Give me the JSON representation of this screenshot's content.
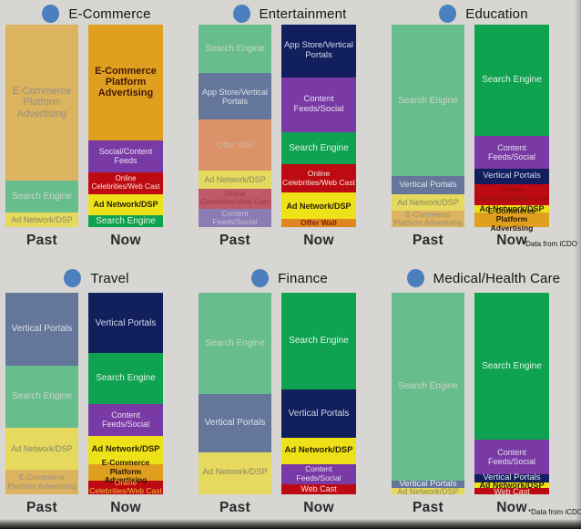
{
  "slide": {
    "background": "#D7D6D3",
    "bullet_color": "#4C7FBE",
    "past_label": "Past",
    "now_label": "Now",
    "footnote": "*Data from iCDO"
  },
  "palette": {
    "past_platform_tan": "#DCB35E",
    "past_search_green": "#68BD8D",
    "past_portals_slate": "#64769A",
    "past_adnetwork_yellow": "#E5D95E",
    "past_offerwall_salmon": "#DB9268",
    "past_celebrities_rose": "#BE5A68",
    "past_feeds_lavender": "#8D7CB4",
    "now_platform_amber": "#DEA01E",
    "now_feeds_purple": "#7A3AA5",
    "now_celebrities_red": "#BE0A12",
    "now_adnetwork_yellow": "#EFE118",
    "now_search_green": "#0FA351",
    "now_portals_navy": "#111F5C",
    "now_offerwall_orange": "#DF861E"
  },
  "chart_note": "Six stacked 100%-style column pairs; no numeric axis shown, pct values estimated from segment pixel heights, listed top-to-bottom",
  "chart_data": [
    {
      "type": "bar",
      "stacked": true,
      "title": "E-Commerce",
      "categories": [
        "Past",
        "Now"
      ],
      "footnote": false,
      "past": [
        {
          "label": "E-Commerce Platform Advertising",
          "pct": 77,
          "bg": "#DCB35E",
          "fg": "#948F80",
          "fs": 11
        },
        {
          "label": "Search Engine",
          "pct": 16,
          "bg": "#68BD8D",
          "fg": "#CBD5C4",
          "fs": 10
        },
        {
          "label": "Ad Network/DSP",
          "pct": 7,
          "bg": "#E5D95E",
          "fg": "#8A8564",
          "fs": 9
        }
      ],
      "now": [
        {
          "label": "E-Commerce Platform Advertising",
          "pct": 57,
          "bg": "#DEA01E",
          "fg": "#47180A",
          "fs": 11,
          "b": true
        },
        {
          "label": "Social/Content Feeds",
          "pct": 16,
          "bg": "#7A3AA5",
          "fg": "#EADEF2",
          "fs": 9
        },
        {
          "label": "Online Celebrities/Web Cast",
          "pct": 11,
          "bg": "#BE0A12",
          "fg": "#F4E9DE",
          "fs": 8
        },
        {
          "label": "Ad Network/DSP",
          "pct": 10,
          "bg": "#EFE118",
          "fg": "#2A2406",
          "fs": 9,
          "b": true
        },
        {
          "label": "Search Engine",
          "pct": 6,
          "bg": "#0FA351",
          "fg": "#DFF2E2",
          "fs": 10
        }
      ]
    },
    {
      "type": "bar",
      "stacked": true,
      "title": "Entertainment",
      "categories": [
        "Past",
        "Now"
      ],
      "footnote": false,
      "past": [
        {
          "label": "Search Engine",
          "pct": 24,
          "bg": "#68BD8D",
          "fg": "#CBD5C4",
          "fs": 10
        },
        {
          "label": "App Store/Vertical Portals",
          "pct": 23,
          "bg": "#64769A",
          "fg": "#DCE1EA",
          "fs": 9
        },
        {
          "label": "Offer Wall",
          "pct": 25,
          "bg": "#DB9268",
          "fg": "#CFB7A0",
          "fs": 9
        },
        {
          "label": "Ad Network/DSP",
          "pct": 9,
          "bg": "#E5D95E",
          "fg": "#8A8564",
          "fs": 9
        },
        {
          "label": "Online Celebrities/Web Cast",
          "pct": 10,
          "bg": "#BE5A68",
          "fg": "#9E3B48",
          "fs": 8
        },
        {
          "label": "Content Feeds/Social",
          "pct": 9,
          "bg": "#8D7CB4",
          "fg": "#C6BEDA",
          "fs": 8.5
        }
      ],
      "now": [
        {
          "label": "App Store/Vertical Portals",
          "pct": 26,
          "bg": "#111F5C",
          "fg": "#D3D9EC",
          "fs": 9.5
        },
        {
          "label": "Content Feeds/Social",
          "pct": 27,
          "bg": "#7A3AA5",
          "fg": "#EADEF2",
          "fs": 9.5
        },
        {
          "label": "Search Engine",
          "pct": 16,
          "bg": "#0FA351",
          "fg": "#DFF2E2",
          "fs": 10
        },
        {
          "label": "Online Celebrities/Web Cast",
          "pct": 14,
          "bg": "#BE0A12",
          "fg": "#F4E9DE",
          "fs": 8.5
        },
        {
          "label": "Ad Network/DSP",
          "pct": 13,
          "bg": "#EFE118",
          "fg": "#2A2406",
          "fs": 9,
          "b": true
        },
        {
          "label": "Offer Wall",
          "pct": 4,
          "bg": "#DF861E",
          "fg": "#7E2410",
          "fs": 8.5,
          "b": true
        }
      ]
    },
    {
      "type": "bar",
      "stacked": true,
      "title": "Education",
      "categories": [
        "Past",
        "Now"
      ],
      "footnote": true,
      "past": [
        {
          "label": "Search Engine",
          "pct": 75,
          "bg": "#68BD8D",
          "fg": "#CBD5C4",
          "fs": 10
        },
        {
          "label": "Vertical Portals",
          "pct": 9,
          "bg": "#64769A",
          "fg": "#DCE1EA",
          "fs": 9.5
        },
        {
          "label": "Ad Network/DSP",
          "pct": 8,
          "bg": "#E5D95E",
          "fg": "#8A8564",
          "fs": 9
        },
        {
          "label": "E-Commerce Platform Advertising",
          "pct": 8,
          "bg": "#DCB35E",
          "fg": "#948F80",
          "fs": 8.5
        }
      ],
      "now": [
        {
          "label": "Search Engine",
          "pct": 55,
          "bg": "#0FA351",
          "fg": "#DFF2E2",
          "fs": 10
        },
        {
          "label": "Content Feeds/Social",
          "pct": 16,
          "bg": "#7A3AA5",
          "fg": "#EADEF2",
          "fs": 9
        },
        {
          "label": "Vertical Portals",
          "pct": 8,
          "bg": "#111F5C",
          "fg": "#D3D9EC",
          "fs": 9.5
        },
        {
          "label": "Online Celebrities/Web Cast",
          "pct": 10,
          "bg": "#BE0A12",
          "fg": "#8A1208",
          "fs": 8.5
        },
        {
          "label": "Ad Network/DSP",
          "pct": 4,
          "bg": "#EFE118",
          "fg": "#2A2406",
          "fs": 9,
          "b": true
        },
        {
          "label": "E-Commerce Platform Advertising",
          "pct": 7,
          "bg": "#DEA01E",
          "fg": "#2A1404",
          "fs": 8.5,
          "b": true
        }
      ]
    },
    {
      "type": "bar",
      "stacked": true,
      "title": "Travel",
      "categories": [
        "Past",
        "Now"
      ],
      "footnote": false,
      "past": [
        {
          "label": "Vertical Portals",
          "pct": 36,
          "bg": "#64769A",
          "fg": "#DCE1EA",
          "fs": 10
        },
        {
          "label": "Search Engine",
          "pct": 31,
          "bg": "#68BD8D",
          "fg": "#CBD5C4",
          "fs": 10
        },
        {
          "label": "Ad Network/DSP",
          "pct": 21,
          "bg": "#E5D95E",
          "fg": "#8A8564",
          "fs": 9
        },
        {
          "label": "E-Commerce Platform Advertising",
          "pct": 12,
          "bg": "#DCB35E",
          "fg": "#948F80",
          "fs": 8.5
        }
      ],
      "now": [
        {
          "label": "Vertical Portals",
          "pct": 30,
          "bg": "#111F5C",
          "fg": "#D3D9EC",
          "fs": 10
        },
        {
          "label": "Search Engine",
          "pct": 25,
          "bg": "#0FA351",
          "fg": "#DFF2E2",
          "fs": 10
        },
        {
          "label": "Content Feeds/Social",
          "pct": 16,
          "bg": "#7A3AA5",
          "fg": "#EADEF2",
          "fs": 9
        },
        {
          "label": "Ad Network/DSP",
          "pct": 14,
          "bg": "#EFE118",
          "fg": "#2A2406",
          "fs": 9.5,
          "b": true
        },
        {
          "label": "E-Commerce Platform Advertising",
          "pct": 8,
          "bg": "#DEA01E",
          "fg": "#2A1404",
          "fs": 8.5,
          "b": true
        },
        {
          "label": "Online Celebrities/Web Cast",
          "pct": 7,
          "bg": "#BE0A12",
          "fg": "#EDC53C",
          "fs": 8.5
        }
      ]
    },
    {
      "type": "bar",
      "stacked": true,
      "title": "Finance",
      "categories": [
        "Past",
        "Now"
      ],
      "footnote": false,
      "past": [
        {
          "label": "Search Engine",
          "pct": 50,
          "bg": "#68BD8D",
          "fg": "#CBD5C4",
          "fs": 10
        },
        {
          "label": "Vertical Portals",
          "pct": 29,
          "bg": "#64769A",
          "fg": "#DCE1EA",
          "fs": 10
        },
        {
          "label": "Ad Network/DSP",
          "pct": 21,
          "bg": "#E5D95E",
          "fg": "#8A8564",
          "fs": 9.5
        }
      ],
      "now": [
        {
          "label": "Search Engine",
          "pct": 48,
          "bg": "#0FA351",
          "fg": "#DFF2E2",
          "fs": 10
        },
        {
          "label": "Vertical Portals",
          "pct": 24,
          "bg": "#111F5C",
          "fg": "#D3D9EC",
          "fs": 10
        },
        {
          "label": "Ad Network/DSP",
          "pct": 13,
          "bg": "#EFE118",
          "fg": "#2A2406",
          "fs": 9.5,
          "b": true
        },
        {
          "label": "Content Feeds/Social",
          "pct": 10,
          "bg": "#7A3AA5",
          "fg": "#EADEF2",
          "fs": 8.5
        },
        {
          "label": "Web Cast",
          "pct": 5,
          "bg": "#BE0A12",
          "fg": "#F4E9DE",
          "fs": 9
        }
      ]
    },
    {
      "type": "bar",
      "stacked": true,
      "title": "Medical/Health Care",
      "categories": [
        "Past",
        "Now"
      ],
      "footnote": true,
      "past": [
        {
          "label": "Search Engine",
          "pct": 93,
          "bg": "#68BD8D",
          "fg": "#CBD5C4",
          "fs": 10
        },
        {
          "label": "Vertical Portals",
          "pct": 4,
          "bg": "#64769A",
          "fg": "#EFF2F6",
          "fs": 9.5
        },
        {
          "label": "Ad Network/DSP",
          "pct": 3,
          "bg": "#E5D95E",
          "fg": "#8A8564",
          "fs": 9
        }
      ],
      "now": [
        {
          "label": "Search Engine",
          "pct": 73,
          "bg": "#0FA351",
          "fg": "#DFF2E2",
          "fs": 10
        },
        {
          "label": "Content Feeds/Social",
          "pct": 17,
          "bg": "#7A3AA5",
          "fg": "#EADEF2",
          "fs": 9
        },
        {
          "label": "Vertical Portals",
          "pct": 4,
          "bg": "#111F5C",
          "fg": "#E6EAF5",
          "fs": 9.5
        },
        {
          "label": "Ad Network/DSP",
          "pct": 3,
          "bg": "#EFE118",
          "fg": "#2A2406",
          "fs": 9,
          "b": true
        },
        {
          "label": "Web Cast",
          "pct": 3,
          "bg": "#BE0A12",
          "fg": "#F4E9DE",
          "fs": 9
        }
      ]
    }
  ]
}
